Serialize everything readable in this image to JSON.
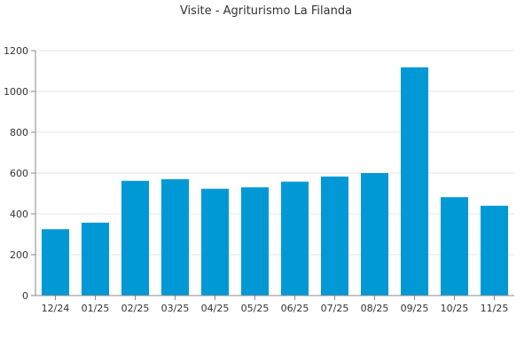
{
  "chart_data": {
    "type": "bar",
    "title": "Visite - Agriturismo La Filanda",
    "xlabel": "",
    "ylabel": "",
    "categories": [
      "12/24",
      "01/25",
      "02/25",
      "03/25",
      "04/25",
      "05/25",
      "06/25",
      "07/25",
      "08/25",
      "09/25",
      "10/25",
      "11/25"
    ],
    "values": [
      325,
      357,
      562,
      570,
      523,
      530,
      558,
      583,
      600,
      1118,
      482,
      440
    ],
    "ylim": [
      0,
      1200
    ],
    "yticks": [
      0,
      200,
      400,
      600,
      800,
      1000,
      1200
    ],
    "grid": true,
    "bar_color": "#0099d6"
  }
}
